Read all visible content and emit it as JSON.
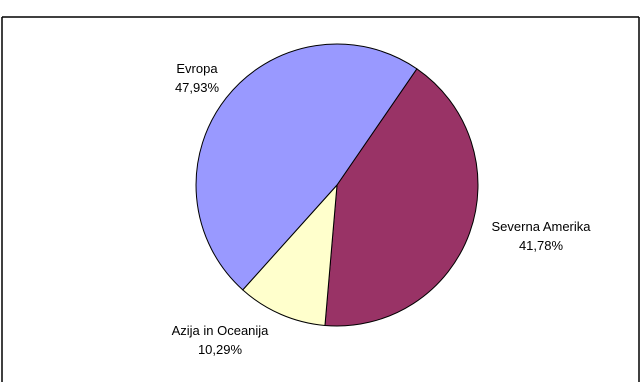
{
  "chart_data": {
    "type": "pie",
    "title": "",
    "slices": [
      {
        "label": "Evropa",
        "value_text": "47,93%",
        "value": 47.93,
        "color": "#9999FF"
      },
      {
        "label": "Severna Amerika",
        "value_text": "41,78%",
        "value": 41.78,
        "color": "#993366"
      },
      {
        "label": "Azija in Oceanija",
        "value_text": "10,29%",
        "value": 10.29,
        "color": "#FFFFCC"
      }
    ],
    "legend": "none"
  }
}
